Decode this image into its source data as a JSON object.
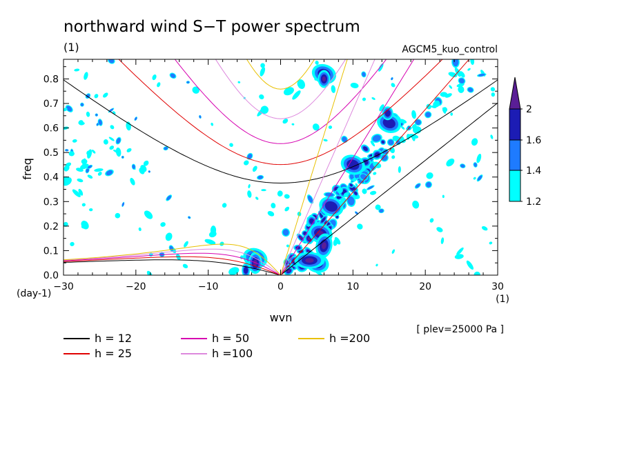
{
  "chart_data": {
    "type": "heatmap",
    "title": "northward wind S−T power spectrum",
    "subtitle_left": "(1)",
    "subtitle_right": "AGCM5_kuo_control",
    "xlabel": "wvn",
    "ylabel": "freq",
    "x_unit": "(1)",
    "y_unit": "(day-1)",
    "note": "[ plev=25000 Pa ]",
    "xlim": [
      -30,
      30
    ],
    "ylim": [
      0,
      0.88
    ],
    "x_ticks": [
      "−30",
      "−20",
      "−10",
      "0",
      "10",
      "20",
      "30"
    ],
    "x_tick_values": [
      -30,
      -20,
      -10,
      0,
      10,
      20,
      30
    ],
    "y_ticks": [
      "0.0",
      "0.1",
      "0.2",
      "0.3",
      "0.4",
      "0.5",
      "0.6",
      "0.7",
      "0.8"
    ],
    "y_tick_values": [
      0,
      0.1,
      0.2,
      0.3,
      0.4,
      0.5,
      0.6,
      0.7,
      0.8
    ],
    "colorbar": {
      "levels": [
        "1.2",
        "1.4",
        "1.6",
        "2"
      ],
      "colors": [
        "#00ffff",
        "#1e7bff",
        "#1c1cb4",
        "#5a1e96"
      ]
    },
    "dispersion_curves": [
      {
        "name": "h = 12",
        "color": "#000000",
        "h": 12
      },
      {
        "name": "h = 25",
        "color": "#e00000",
        "h": 25
      },
      {
        "name": "h = 50",
        "color": "#d600b0",
        "h": 50
      },
      {
        "name": "h =100",
        "color": "#dd88dd",
        "h": 100
      },
      {
        "name": "h =200",
        "color": "#e8c000",
        "h": 200
      }
    ],
    "high_power_regions": [
      {
        "x": 5,
        "y": 0.05,
        "level": 4
      },
      {
        "x": 5.5,
        "y": 0.17,
        "level": 4
      },
      {
        "x": 7,
        "y": 0.28,
        "level": 3
      },
      {
        "x": 10,
        "y": 0.45,
        "level": 3
      },
      {
        "x": 15,
        "y": 0.62,
        "level": 3
      },
      {
        "x": 6,
        "y": 0.82,
        "level": 4
      },
      {
        "x": -3.5,
        "y": 0.07,
        "level": 4
      }
    ]
  }
}
